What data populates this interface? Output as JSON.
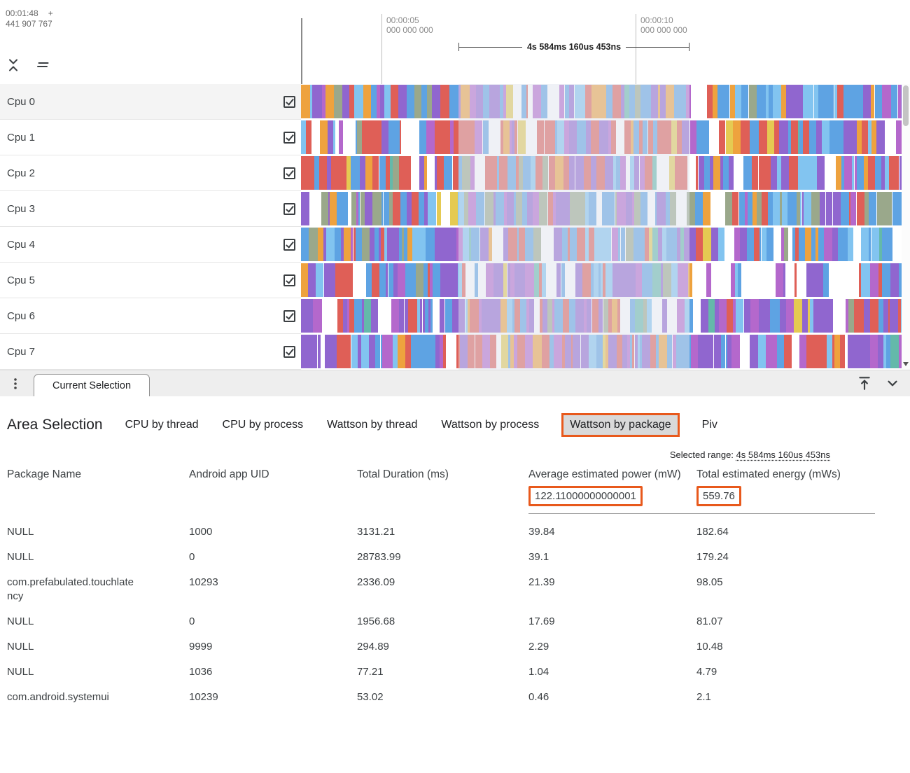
{
  "accent_color": "#e8591c",
  "timeline": {
    "cursor_time": "00:01:48",
    "cursor_offset_sign": "+",
    "cursor_offset": "441 907 767",
    "markers": [
      {
        "time": "00:00:05",
        "ns": "000 000 000"
      },
      {
        "time": "00:00:10",
        "ns": "000 000 000"
      }
    ],
    "range_duration": "4s 584ms 160us 453ns"
  },
  "tracks": {
    "palette": [
      "#5ea3e3",
      "#82c4f0",
      "#9066cf",
      "#b468cc",
      "#df5f57",
      "#eea23e",
      "#e5ca52",
      "#64b9aa",
      "#9aa88b",
      "#ffffff"
    ],
    "rows": [
      {
        "label": "Cpu 0",
        "checked": true
      },
      {
        "label": "Cpu 1",
        "checked": true
      },
      {
        "label": "Cpu 2",
        "checked": true
      },
      {
        "label": "Cpu 3",
        "checked": true
      },
      {
        "label": "Cpu 4",
        "checked": true
      },
      {
        "label": "Cpu 5",
        "checked": true
      },
      {
        "label": "Cpu 6",
        "checked": true
      },
      {
        "label": "Cpu 7",
        "checked": true
      }
    ]
  },
  "panel_tabbar": {
    "tab_label": "Current Selection"
  },
  "selection_panel": {
    "title": "Area Selection",
    "tabs": [
      {
        "label": "CPU by thread",
        "active": false
      },
      {
        "label": "CPU by process",
        "active": false
      },
      {
        "label": "Wattson by thread",
        "active": false
      },
      {
        "label": "Wattson by process",
        "active": false
      },
      {
        "label": "Wattson by package",
        "active": true
      },
      {
        "label": "Piv",
        "active": false
      }
    ],
    "selected_range_label": "Selected range:",
    "selected_range_value": "4s 584ms 160us 453ns",
    "table": {
      "columns": [
        "Package Name",
        "Android app UID",
        "Total Duration (ms)",
        "Average estimated power (mW)",
        "Total estimated energy (mWs)"
      ],
      "summary": {
        "average_power": "122.11000000000001",
        "total_energy": "559.76"
      },
      "rows": [
        [
          "NULL",
          "1000",
          "3131.21",
          "39.84",
          "182.64"
        ],
        [
          "NULL",
          "0",
          "28783.99",
          "39.1",
          "179.24"
        ],
        [
          "com.prefabulated.touchlatency",
          "10293",
          "2336.09",
          "21.39",
          "98.05"
        ],
        [
          "NULL",
          "0",
          "1956.68",
          "17.69",
          "81.07"
        ],
        [
          "NULL",
          "9999",
          "294.89",
          "2.29",
          "10.48"
        ],
        [
          "NULL",
          "1036",
          "77.21",
          "1.04",
          "4.79"
        ],
        [
          "com.android.systemui",
          "10239",
          "53.02",
          "0.46",
          "2.1"
        ]
      ]
    }
  },
  "icons": {
    "collapse": "unfold-less-icon",
    "flatten": "flatten-tracks-icon",
    "menu": "vertical-dots-icon",
    "dock_top": "vertical-align-top-icon",
    "collapse_panel": "chevron-down-icon",
    "scroll_down": "scroll-down-arrow-icon"
  }
}
